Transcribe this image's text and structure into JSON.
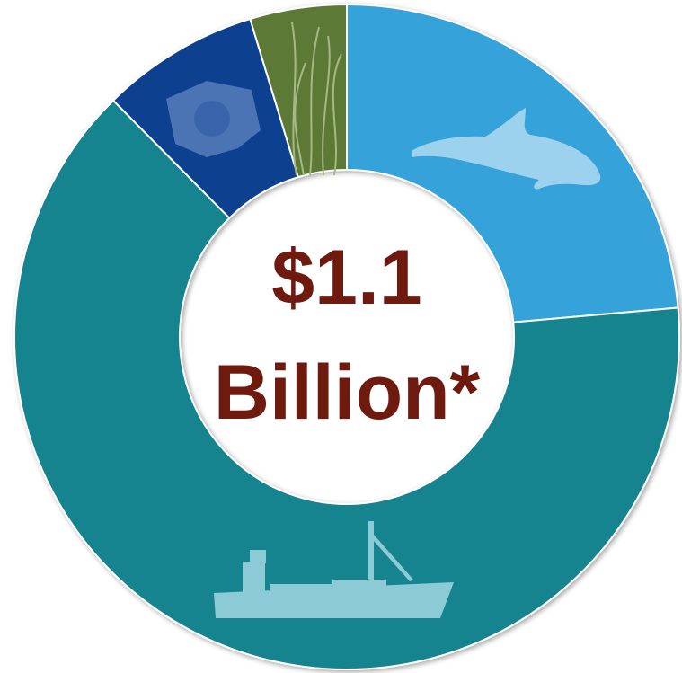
{
  "chart_data": {
    "type": "donut",
    "values": [
      23.6,
      64,
      7.7,
      4.7
    ],
    "colors": [
      "#35a2da",
      "#15848e",
      "#0e3f8f",
      "#5b7a36"
    ],
    "center_text": [
      "$1.1",
      "Billion*"
    ]
  }
}
